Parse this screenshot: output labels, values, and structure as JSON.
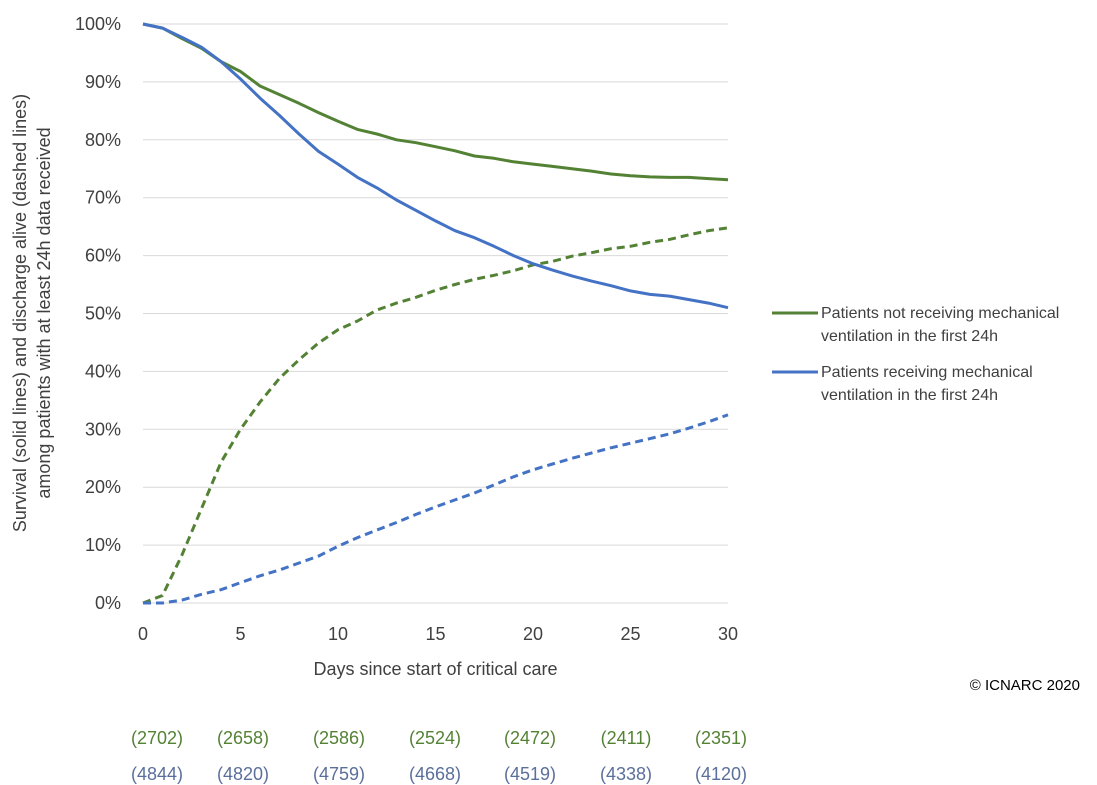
{
  "chart_data": {
    "type": "line",
    "title": "",
    "xlabel": "Days since start of critical care",
    "ylabel_lines": [
      "Survival (solid lines) and  discharge alive (dashed lines)",
      "among patients with at least 24h data received"
    ],
    "xlim": [
      0,
      30
    ],
    "ylim": [
      0,
      100
    ],
    "x_ticks": [
      "0",
      "5",
      "10",
      "15",
      "20",
      "25",
      "30"
    ],
    "y_ticks": [
      "0%",
      "10%",
      "20%",
      "30%",
      "40%",
      "50%",
      "60%",
      "70%",
      "80%",
      "90%",
      "100%"
    ],
    "grid": "horizontal",
    "legend_position": "right",
    "x": [
      0,
      1,
      2,
      3,
      4,
      5,
      6,
      7,
      8,
      9,
      10,
      11,
      12,
      13,
      14,
      15,
      16,
      17,
      18,
      19,
      20,
      21,
      22,
      23,
      24,
      25,
      26,
      27,
      28,
      29,
      30
    ],
    "series": [
      {
        "legend_label_lines": [
          "Patients not receiving mechanical",
          "ventilation in the first 24h"
        ],
        "color": "#548235",
        "survival": [
          100,
          99.3,
          97.5,
          95.8,
          93.5,
          91.8,
          89.3,
          87.8,
          86.3,
          84.7,
          83.2,
          81.8,
          81,
          80,
          79.5,
          78.8,
          78.1,
          77.2,
          76.8,
          76.2,
          75.8,
          75.4,
          75,
          74.6,
          74.1,
          73.8,
          73.6,
          73.5,
          73.5,
          73.3,
          73.1
        ],
        "discharge": [
          0,
          1.3,
          8.3,
          16.3,
          24.3,
          30,
          34.7,
          38.8,
          42,
          44.9,
          47.2,
          48.7,
          50.6,
          51.8,
          52.8,
          54,
          55,
          55.9,
          56.6,
          57.4,
          58.4,
          59,
          59.9,
          60.5,
          61.2,
          61.6,
          62.3,
          62.8,
          63.6,
          64.3,
          64.8
        ]
      },
      {
        "legend_label_lines": [
          "Patients receiving mechanical",
          "ventilation in the first 24h"
        ],
        "color": "#4472C4",
        "survival": [
          100,
          99.3,
          97.7,
          96,
          93.5,
          90.5,
          87.2,
          84.2,
          81,
          78,
          75.8,
          73.5,
          71.7,
          69.6,
          67.8,
          66,
          64.3,
          63.1,
          61.6,
          60,
          58.6,
          57.5,
          56.5,
          55.6,
          54.8,
          53.9,
          53.3,
          53,
          52.4,
          51.8,
          51
        ],
        "discharge": [
          0,
          0,
          0.5,
          1.5,
          2.3,
          3.5,
          4.7,
          5.7,
          6.9,
          8.1,
          9.8,
          11.3,
          12.6,
          13.9,
          15.3,
          16.6,
          17.8,
          19,
          20.4,
          21.8,
          23,
          24,
          25,
          25.9,
          26.8,
          27.6,
          28.4,
          29.2,
          30.2,
          31.3,
          32.5
        ]
      }
    ],
    "counts": [
      {
        "color": "#548235",
        "values": [
          "(2702)",
          "(2658)",
          "(2586)",
          "(2524)",
          "(2472)",
          "(2411)",
          "(2351)"
        ]
      },
      {
        "color": "#5B6F9B",
        "values": [
          "(4844)",
          "(4820)",
          "(4759)",
          "(4668)",
          "(4519)",
          "(4338)",
          "(4120)"
        ]
      }
    ]
  },
  "copyright": "© ICNARC 2020"
}
